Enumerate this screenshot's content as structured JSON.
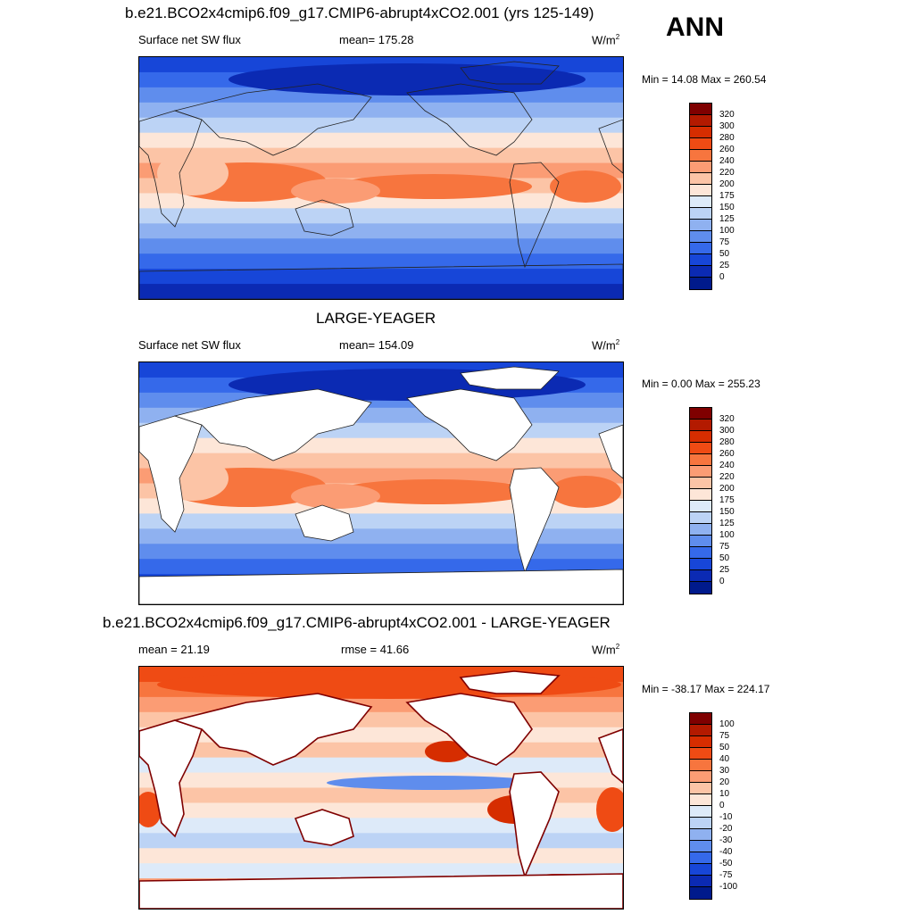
{
  "season": "ANN",
  "panels": [
    {
      "title": "b.e21.BCO2x4cmip6.f09_g17.CMIP6-abrupt4xCO2.001 (yrs 125-149)",
      "left_label": "Surface net SW flux",
      "center_label": "mean= 175.28",
      "units": "W/m",
      "units_sup": "2",
      "minmax": "Min =  14.08 Max = 260.54",
      "land": "filled"
    },
    {
      "title": "LARGE-YEAGER",
      "left_label": "Surface net SW flux",
      "center_label": "mean= 154.09",
      "units": "W/m",
      "units_sup": "2",
      "minmax": "Min =   0.00 Max = 255.23",
      "land": "masked"
    },
    {
      "title": "b.e21.BCO2x4cmip6.f09_g17.CMIP6-abrupt4xCO2.001 - LARGE-YEAGER",
      "left_label": "mean =  21.19",
      "center_label": "rmse =  41.66",
      "units": "W/m",
      "units_sup": "2",
      "minmax": "Min = -38.17 Max = 224.17",
      "land": "masked"
    }
  ],
  "colorbar_abs": {
    "labels": [
      "320",
      "300",
      "280",
      "260",
      "240",
      "220",
      "200",
      "175",
      "150",
      "125",
      "100",
      "75",
      "50",
      "25",
      "0"
    ],
    "colors": [
      "#7f0000",
      "#b31a00",
      "#d62d00",
      "#ef4b14",
      "#f7753e",
      "#fb9c74",
      "#fcc4a6",
      "#fde6d8",
      "#ddeaf9",
      "#bcd3f5",
      "#8fb1f0",
      "#5f8ded",
      "#3569ea",
      "#1746d8",
      "#0b2ab3",
      "#001a8c"
    ]
  },
  "colorbar_diff": {
    "labels": [
      "100",
      "75",
      "50",
      "40",
      "30",
      "20",
      "10",
      "0",
      "-10",
      "-20",
      "-30",
      "-40",
      "-50",
      "-75",
      "-100"
    ],
    "colors": [
      "#7f0000",
      "#b31a00",
      "#d62d00",
      "#ef4b14",
      "#f7753e",
      "#fb9c74",
      "#fcc4a6",
      "#fde6d8",
      "#ddeaf9",
      "#bcd3f5",
      "#8fb1f0",
      "#5f8ded",
      "#3569ea",
      "#1746d8",
      "#0b2ab3",
      "#001a8c"
    ]
  }
}
